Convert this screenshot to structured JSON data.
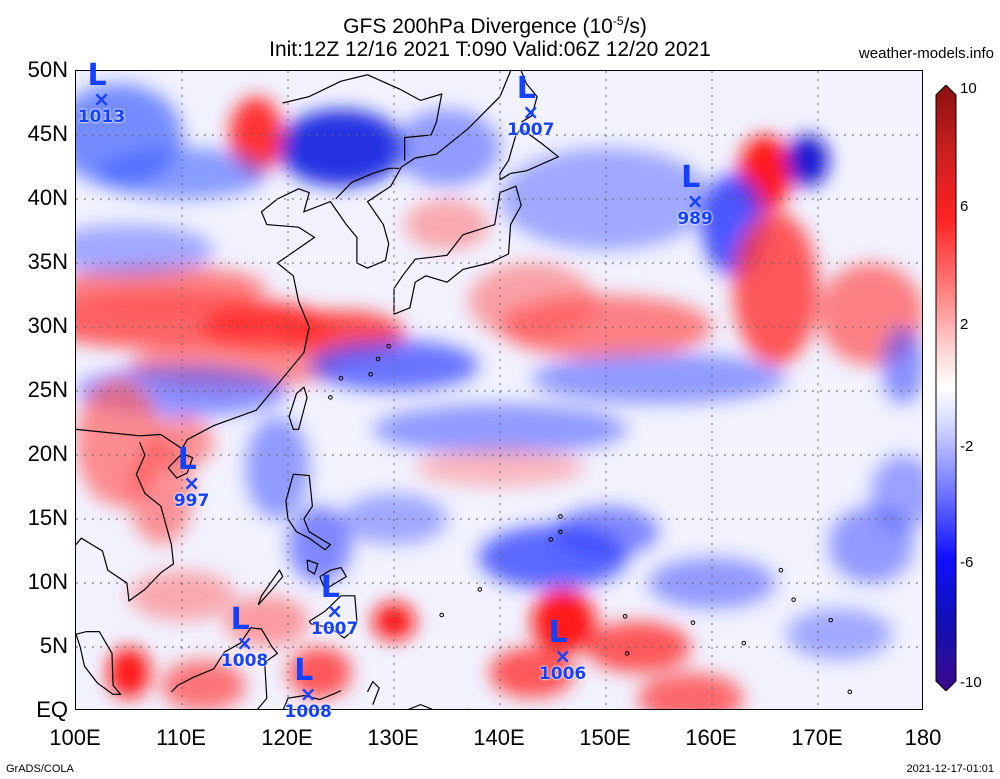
{
  "title": {
    "line1": "GFS 200hPa Divergence (10",
    "line1_exp": "-5",
    "line1_end": "/s)",
    "line2": "Init:12Z 12/16 2021  T:090  Valid:06Z 12/20 2021"
  },
  "site": "weather-models.info",
  "footer": {
    "left": "GrADS/COLA",
    "right": "2021-12-17-01:01"
  },
  "lat_labels": [
    "50N",
    "45N",
    "40N",
    "35N",
    "30N",
    "25N",
    "20N",
    "15N",
    "10N",
    "5N",
    "EQ"
  ],
  "lon_labels": [
    "100E",
    "110E",
    "120E",
    "130E",
    "140E",
    "150E",
    "160E",
    "170E",
    "180"
  ],
  "colorbar": {
    "labels": [
      "10",
      "6",
      "2",
      "-2",
      "-6",
      "-10"
    ],
    "colors": [
      "#7a0a12",
      "#c81818",
      "#ff2a2a",
      "#ff8a8a",
      "#ffd0d0",
      "#ffffff",
      "#d0d6ff",
      "#8890ff",
      "#2a36ff",
      "#1414c8",
      "#3a0aa0"
    ]
  },
  "lows": [
    {
      "pressure": "1013",
      "lon": 102.5,
      "lat": 47.5
    },
    {
      "pressure": "1007",
      "lon": 143,
      "lat": 46.5
    },
    {
      "pressure": "989",
      "lon": 158.5,
      "lat": 39.5
    },
    {
      "pressure": "997",
      "lon": 111,
      "lat": 17.5
    },
    {
      "pressure": "1007",
      "lon": 124.5,
      "lat": 7.5
    },
    {
      "pressure": "1008",
      "lon": 116,
      "lat": 5
    },
    {
      "pressure": "1008",
      "lon": 122,
      "lat": 1
    },
    {
      "pressure": "1006",
      "lon": 146,
      "lat": 4
    }
  ]
}
